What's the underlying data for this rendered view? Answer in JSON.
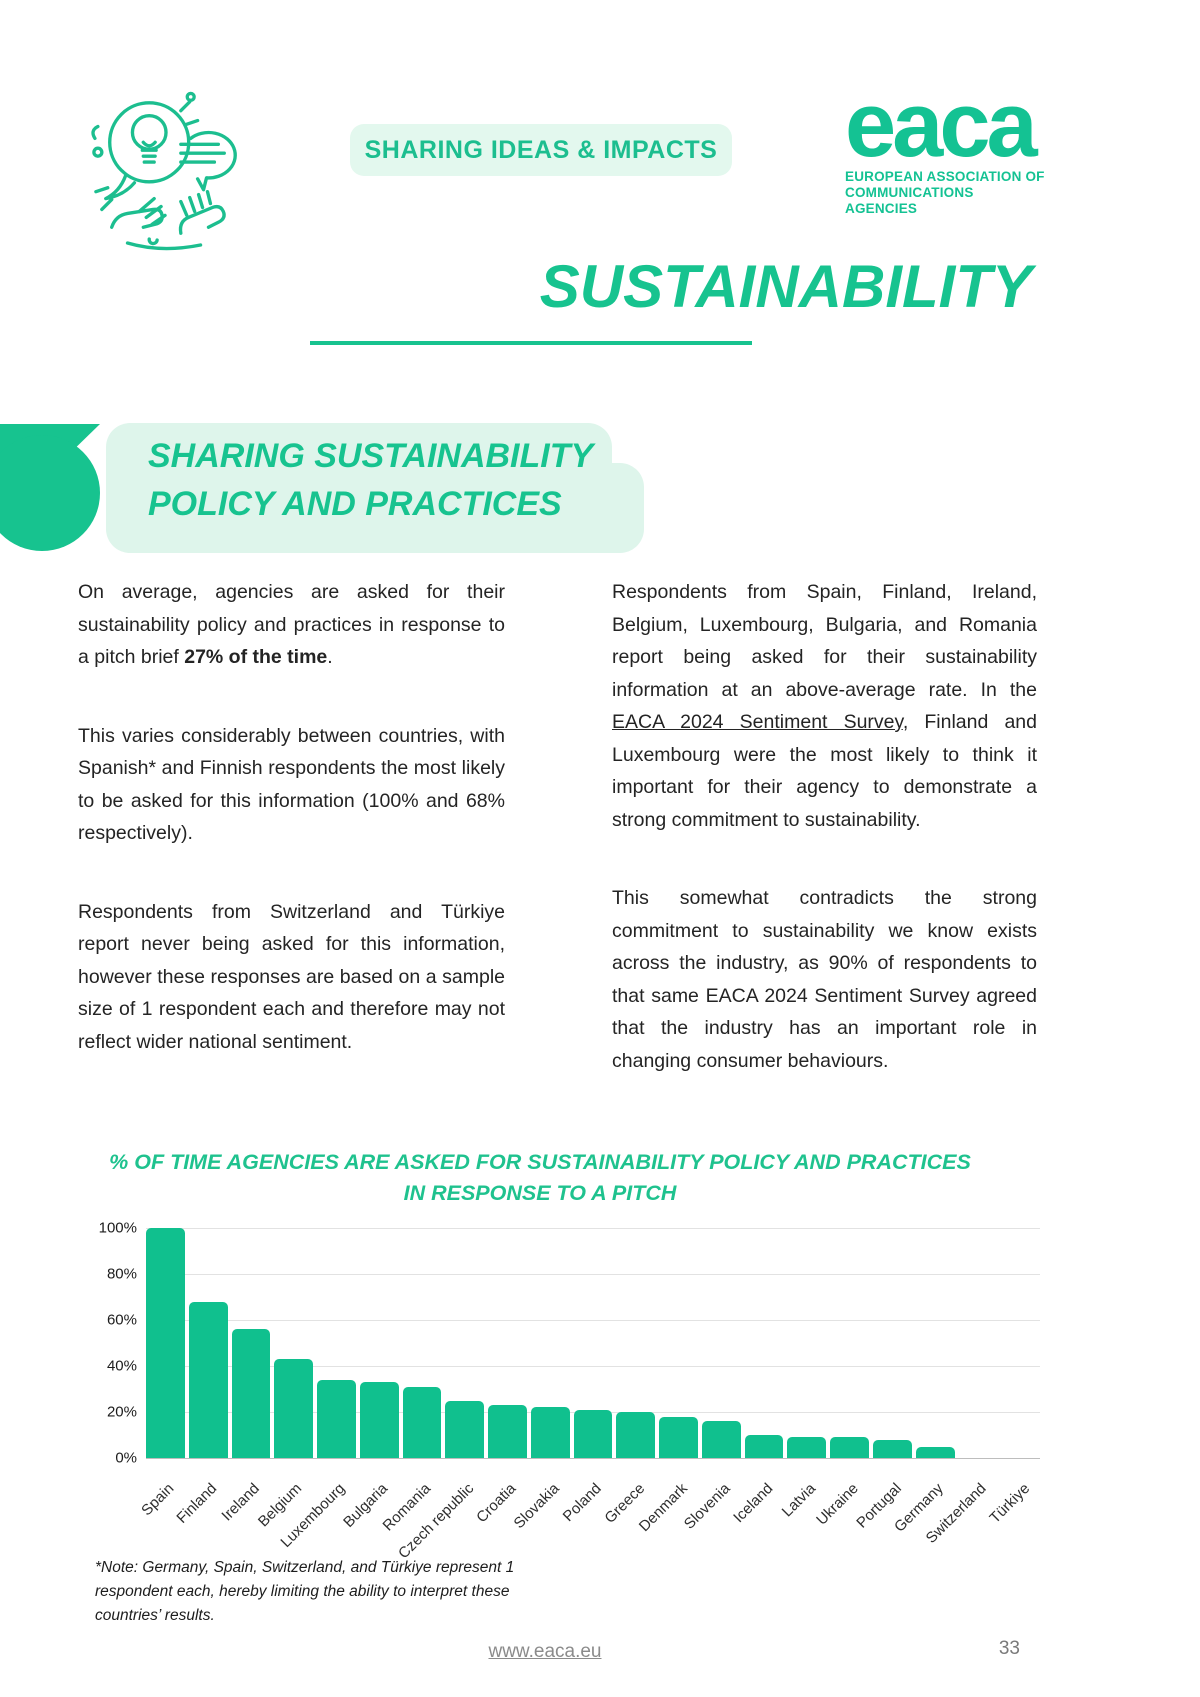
{
  "colors": {
    "green": "#10C08E",
    "light_green": "#E3F8EE",
    "grid": "#E2E2E2",
    "text": "#242424",
    "muted": "#8B8B8B"
  },
  "header": {
    "badge_label": "SHARING IDEAS & IMPACTS",
    "logo_wordmark": "eaca",
    "logo_subtitle_line1": "EUROPEAN ASSOCIATION OF",
    "logo_subtitle_line2": "COMMUNICATIONS AGENCIES"
  },
  "page_title": "SUSTAINABILITY",
  "section_heading": {
    "line1": "SHARING SUSTAINABILITY",
    "line2": "POLICY AND PRACTICES"
  },
  "body": {
    "left_p1": {
      "pre": "On average, agencies are asked for their sustainability policy and practices in response to a pitch brief ",
      "bold": "27% of the time",
      "post": "."
    },
    "left_p2": "This varies considerably between countries, with Spanish* and Finnish respondents the most likely to be asked for this information (100% and 68% respectively).",
    "left_p3": "Respondents from Switzerland and Türkiye report never being asked for this information, however these responses are based on a sample size of 1 respondent each and therefore may not reflect wider national sentiment.",
    "right_p1": {
      "pre": "Respondents from Spain, Finland, Ireland, Belgium, Luxembourg, Bulgaria, and Romania report being asked for their sustainability information at an above-average rate. In the ",
      "link": "EACA 2024 Sentiment Survey",
      "post": ", Finland and Luxembourg were the most likely to think it important for their agency to demonstrate a strong commitment to sustainability."
    },
    "right_p2": "This somewhat contradicts the strong commitment to sustainability we know exists across the industry, as 90% of respondents to that same EACA 2024 Sentiment Survey agreed that the industry has an important role in changing consumer behaviours."
  },
  "chart_data": {
    "type": "bar",
    "title_line1": "% OF TIME AGENCIES ARE ASKED FOR SUSTAINABILITY POLICY AND PRACTICES",
    "title_line2": "IN RESPONSE TO A PITCH",
    "categories": [
      "Spain",
      "Finland",
      "Ireland",
      "Belgium",
      "Luxembourg",
      "Bulgaria",
      "Romania",
      "Czech republic",
      "Croatia",
      "Slovakia",
      "Poland",
      "Greece",
      "Denmark",
      "Slovenia",
      "Iceland",
      "Latvia",
      "Ukraine",
      "Portugal",
      "Germany",
      "Switzerland",
      "Türkiye"
    ],
    "values": [
      100,
      68,
      56,
      43,
      34,
      33,
      31,
      25,
      23,
      22,
      21,
      20,
      18,
      16,
      10,
      9,
      9,
      8,
      5,
      0,
      0
    ],
    "y_ticks": [
      "100%",
      "80%",
      "60%",
      "40%",
      "20%",
      "0%"
    ],
    "ylim": [
      0,
      100
    ],
    "grid": true,
    "legend_position": "none",
    "bar_color": "#10C08E"
  },
  "note": "*Note: Germany, Spain, Switzerland, and Türkiye represent 1 respondent each, hereby limiting the ability to interpret these countries’ results.",
  "footer": {
    "link": "www.eaca.eu",
    "page_number": "33"
  }
}
